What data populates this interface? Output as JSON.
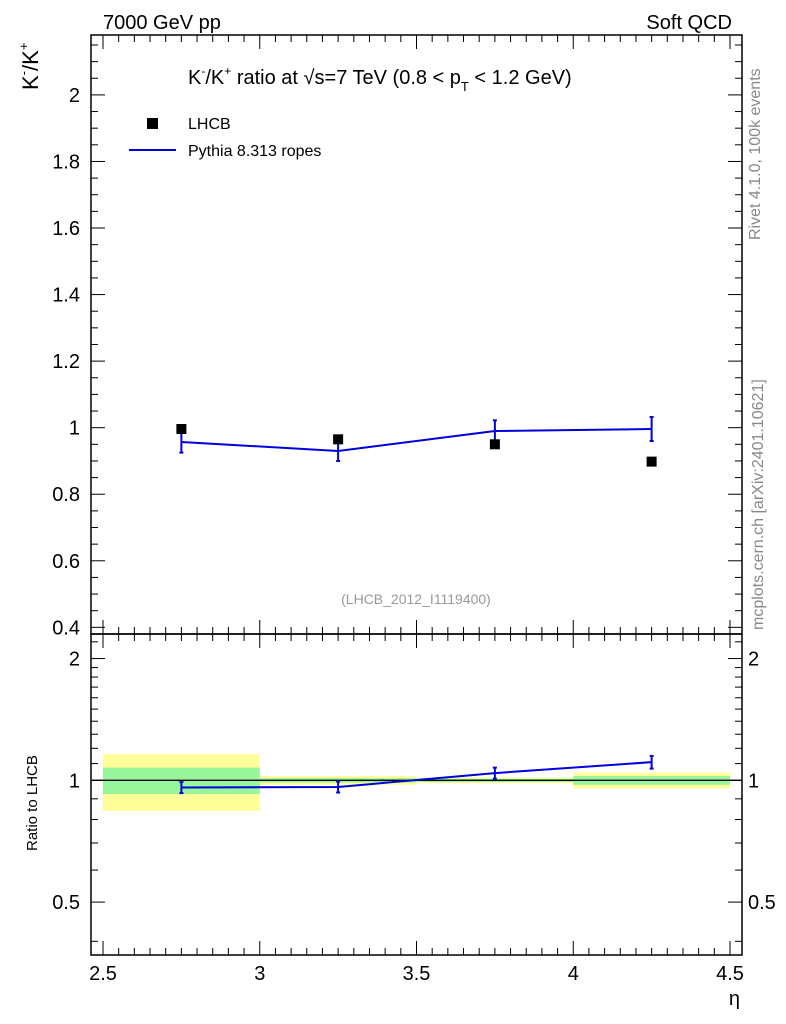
{
  "header": {
    "left": "7000 GeV pp",
    "right": "Soft QCD"
  },
  "side_labels": {
    "rivet": "Rivet 4.1.0,  100k events",
    "mcplots": "mcplots.cern.ch [arXiv:2401.10621]"
  },
  "chart_data": {
    "type": "scatter",
    "title": "K⁻/K⁺ ratio at √s=7 TeV (0.8 < pT < 1.2 GeV)",
    "title_parts": {
      "k": "K",
      "minus": "-",
      "slash": "/K",
      "plus": "+",
      "ratio_text": " ratio at ",
      "sqrt": "√",
      "s_text": "s=7 TeV (0.8 < p",
      "t_sub": "T",
      "end_text": " < 1.2 GeV)"
    },
    "ylabel_parts": {
      "k1": "K",
      "minus": "-",
      "slash": "/K",
      "plus": "+"
    },
    "xlabel": "η",
    "ratio_ylabel": "Ratio to LHCB",
    "analysis_id": "(LHCB_2012_I1119400)",
    "xlim": [
      2.5,
      4.5
    ],
    "ylim": [
      0.38,
      2.18
    ],
    "ratio_ylim": [
      0.37,
      2.3
    ],
    "ratio_scale": "log",
    "x_ticks": [
      "2.5",
      "3",
      "3.5",
      "4",
      "4.5"
    ],
    "y_ticks": [
      "0.4",
      "0.6",
      "0.8",
      "1",
      "1.2",
      "1.4",
      "1.6",
      "1.8",
      "2"
    ],
    "ratio_y_ticks": [
      "0.5",
      "1",
      "2"
    ],
    "legend": {
      "placement": "top-left",
      "entries": [
        "LHCB",
        "Pythia 8.313 ropes"
      ]
    },
    "series": [
      {
        "name": "LHCB",
        "kind": "markers",
        "x": [
          2.75,
          3.25,
          3.75,
          4.25
        ],
        "y": [
          0.996,
          0.965,
          0.95,
          0.898
        ],
        "bins": [
          [
            2.5,
            3.0
          ],
          [
            3.0,
            3.5
          ],
          [
            3.5,
            4.0
          ],
          [
            4.0,
            4.5
          ]
        ],
        "ratio_band_inner": [
          0.075,
          0.012,
          0.009,
          0.025
        ],
        "ratio_band_outer": [
          0.16,
          0.025,
          0.016,
          0.045
        ]
      },
      {
        "name": "Pythia 8.313 ropes",
        "kind": "line",
        "color": "#0000dd",
        "x": [
          2.75,
          3.25,
          3.75,
          4.25
        ],
        "y": [
          0.957,
          0.93,
          0.99,
          0.996
        ],
        "yerr": [
          0.032,
          0.03,
          0.032,
          0.036
        ],
        "ratio": [
          0.96,
          0.963,
          1.042,
          1.109
        ],
        "ratio_err": [
          0.03,
          0.03,
          0.033,
          0.04
        ]
      }
    ]
  },
  "colors": {
    "mc": "#0000dd",
    "band_outer": "#ffff99",
    "band_inner": "#99f599",
    "side_text": "#888888"
  }
}
